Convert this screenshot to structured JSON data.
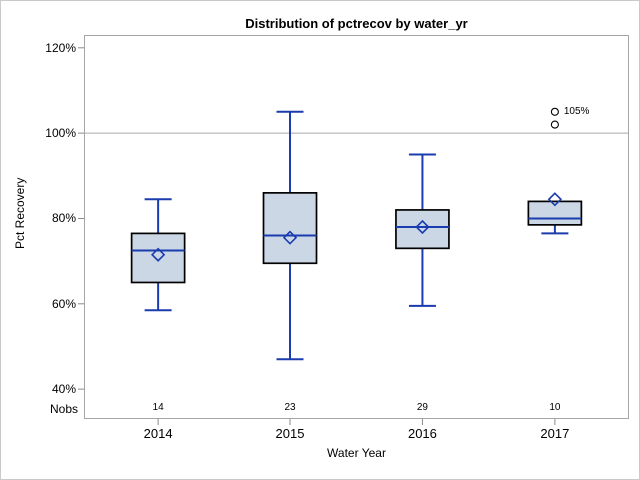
{
  "chart_data": {
    "type": "boxplot",
    "title": "Distribution of pctrecov by water_yr",
    "xlabel": "Water Year",
    "ylabel": "Pct Recovery",
    "ylim": [
      33,
      123
    ],
    "yticks": [
      120,
      100,
      80,
      60,
      40
    ],
    "ytick_suffix": "%",
    "grid": false,
    "reference_line_y": 100,
    "nobs_row_label": "Nobs",
    "categories": [
      "2014",
      "2015",
      "2016",
      "2017"
    ],
    "series": [
      {
        "category": "2014",
        "nobs": "14",
        "whisker_low": 58.5,
        "q1": 65,
        "median": 72.5,
        "q3": 76.5,
        "whisker_high": 84.5,
        "mean": 71.5,
        "outliers": []
      },
      {
        "category": "2015",
        "nobs": "23",
        "whisker_low": 47,
        "q1": 69.5,
        "median": 76,
        "q3": 86,
        "whisker_high": 105,
        "mean": 75.5,
        "outliers": []
      },
      {
        "category": "2016",
        "nobs": "29",
        "whisker_low": 59.5,
        "q1": 73,
        "median": 78,
        "q3": 82,
        "whisker_high": 95,
        "mean": 78,
        "outliers": []
      },
      {
        "category": "2017",
        "nobs": "10",
        "whisker_low": 76.5,
        "q1": 78.5,
        "median": 80,
        "q3": 84,
        "whisker_high": 84,
        "mean": 84.5,
        "outliers": [
          {
            "value": 102,
            "label": ""
          },
          {
            "value": 105,
            "label": "105%"
          }
        ]
      }
    ],
    "colors": {
      "box_fill": "#ccd7e6",
      "box_border": "#000000",
      "whisker": "#1a3cae",
      "median": "#1a3cae",
      "mean_marker": "#1a3cae",
      "outlier_stroke": "#000000",
      "outlier_fill": "#ffffff",
      "reference_line": "#a9a9a9",
      "plot_border": "#a6a6a6",
      "tick": "#8a8a8a",
      "text": "#000000"
    }
  }
}
